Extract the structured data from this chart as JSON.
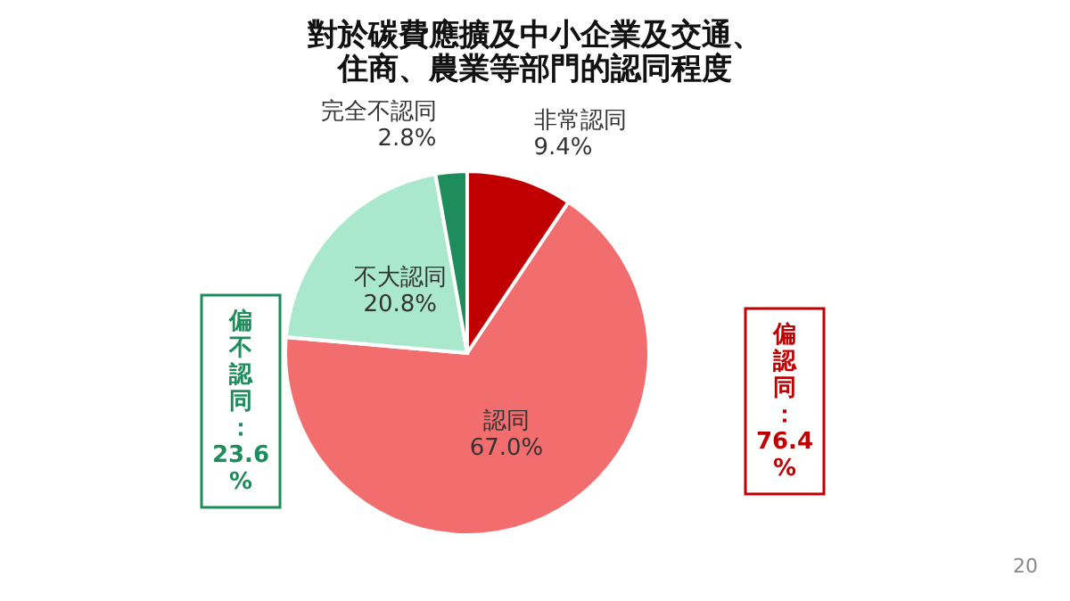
{
  "chart_data": {
    "type": "pie",
    "title": "對於碳費應擴及中小企業及交通、住商、農業等部門的認同程度",
    "categories": [
      "非常認同",
      "認同",
      "不大認同",
      "完全不認同"
    ],
    "values": [
      9.4,
      67.0,
      20.8,
      2.8
    ],
    "colors": [
      "#c00000",
      "#f26d6d",
      "#a9e8cc",
      "#1f8c5c"
    ],
    "value_labels": [
      "9.4%",
      "67.0%",
      "20.8%",
      "2.8%"
    ],
    "annotations": [
      "偏不認同：23.6%",
      "偏認同：76.4%",
      "20"
    ]
  }
}
